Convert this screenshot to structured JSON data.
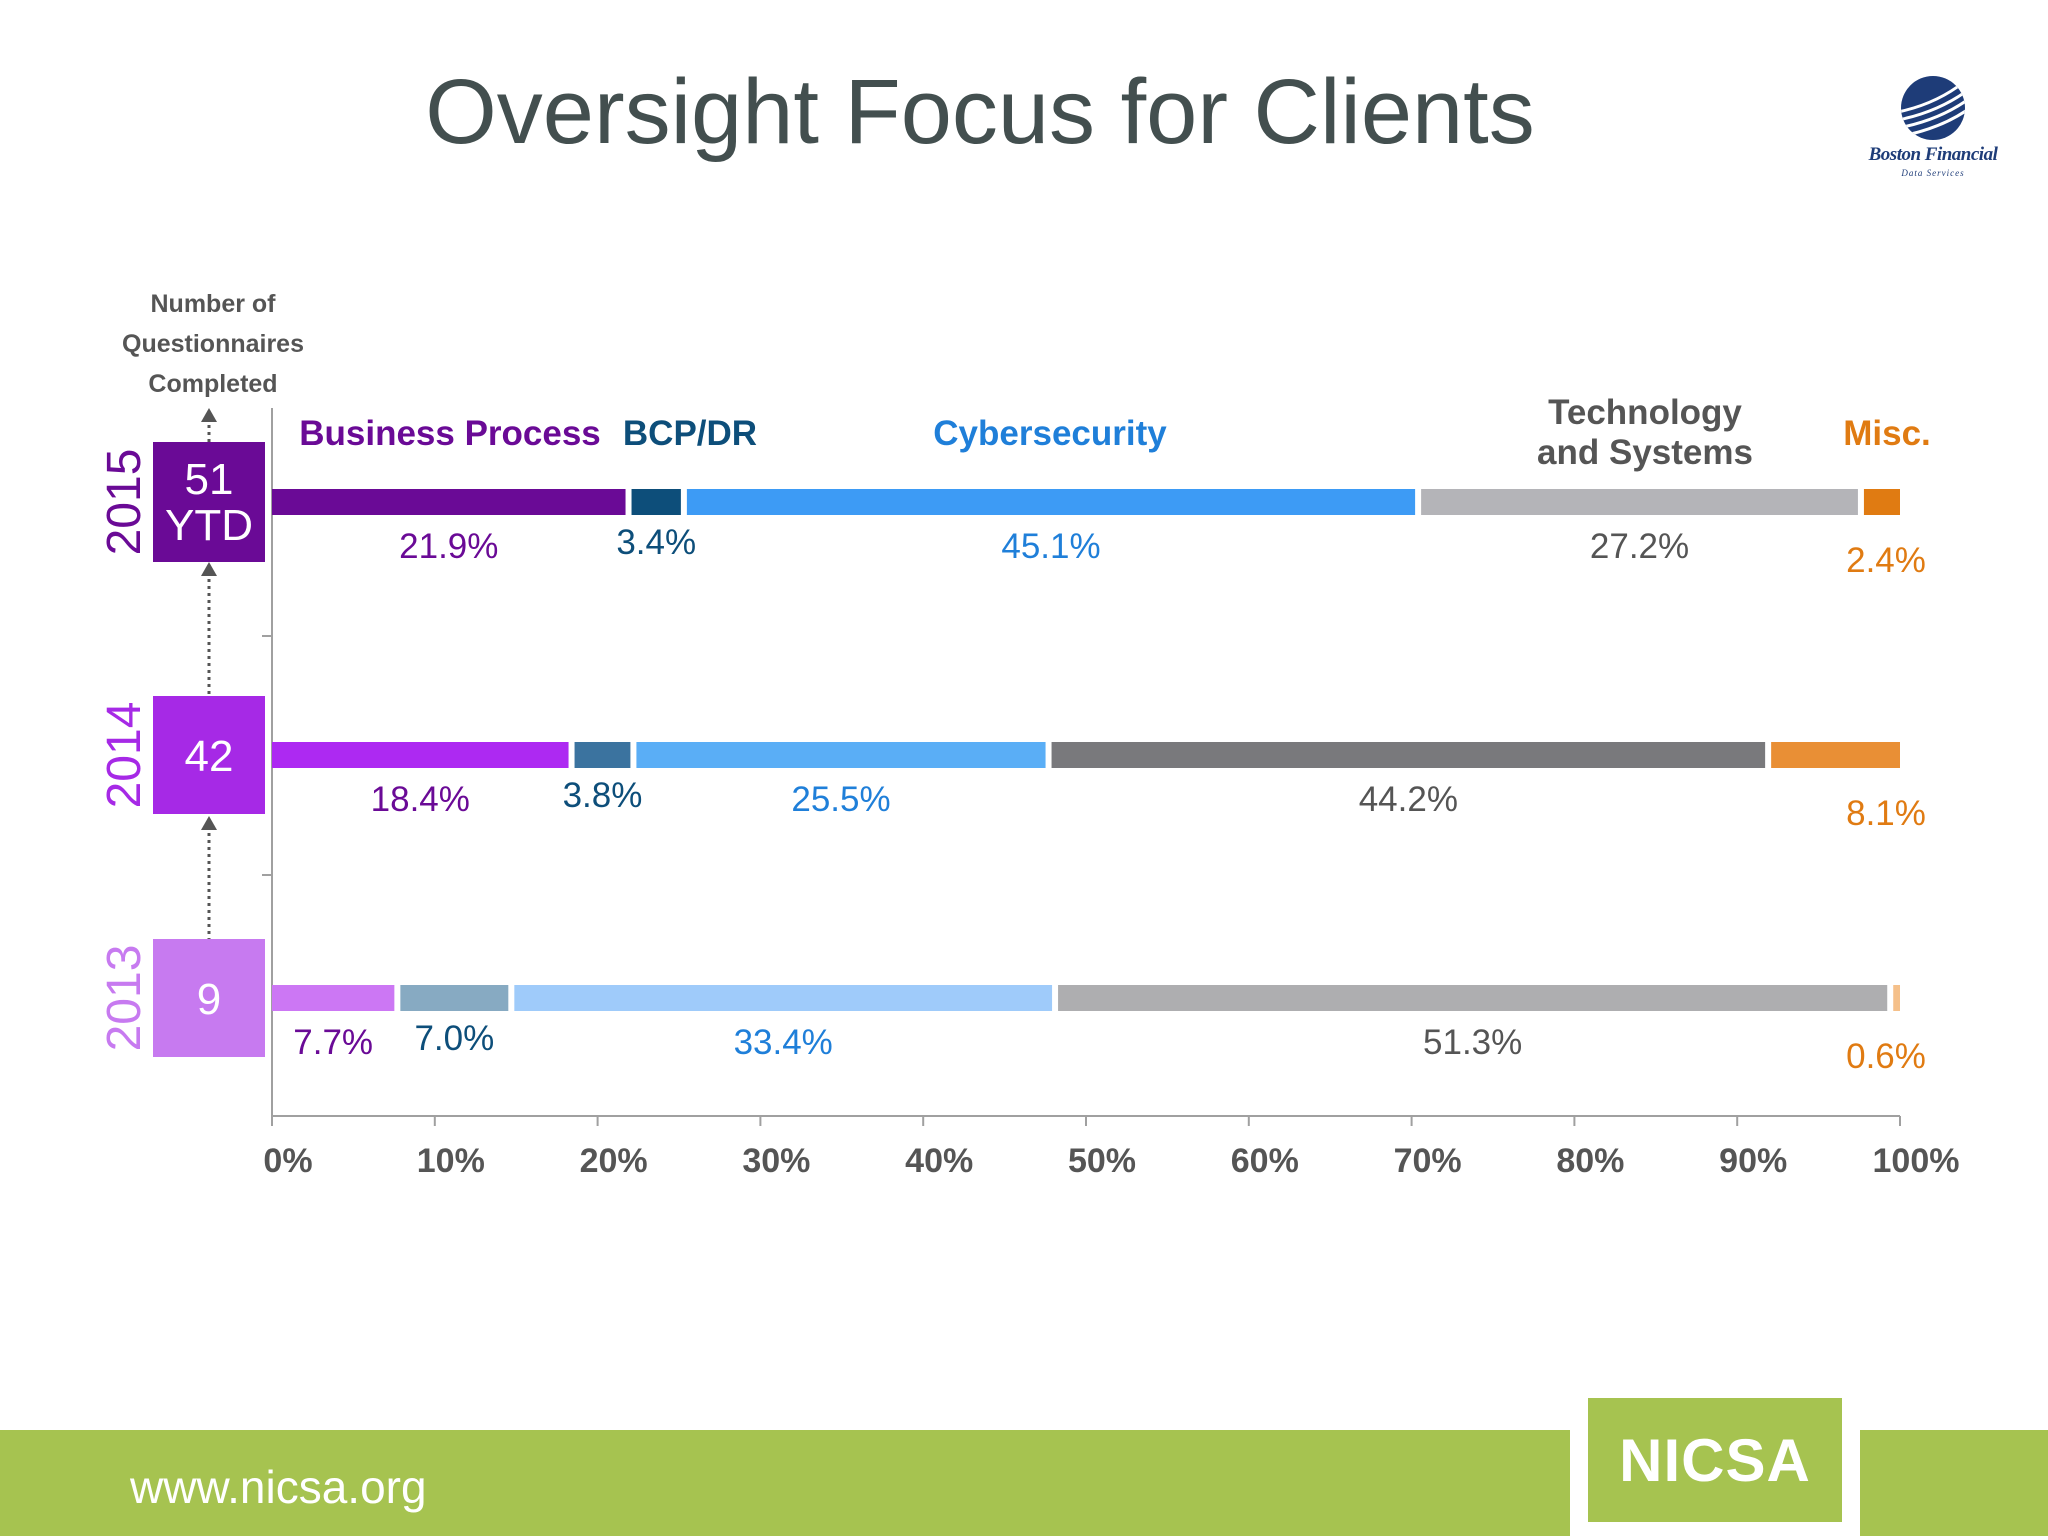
{
  "title": "Oversight Focus for Clients",
  "logo": {
    "name": "Boston Financial",
    "subtitle": "Data Services"
  },
  "footer": {
    "url": "www.nicsa.org",
    "brand": "NICSA"
  },
  "colors": {
    "footer_green": "#a6c350",
    "axis": "#9a9a9a"
  },
  "chart_data": {
    "type": "bar",
    "stacked": true,
    "orientation": "horizontal",
    "ylabel": "Number of Questionnaires Completed",
    "xlim": [
      0,
      100
    ],
    "x_ticks": [
      "0%",
      "10%",
      "20%",
      "30%",
      "40%",
      "50%",
      "60%",
      "70%",
      "80%",
      "90%",
      "100%"
    ],
    "categories_order": [
      "Business Process",
      "BCP/DR",
      "Cybersecurity",
      "Technology and Systems",
      "Misc."
    ],
    "legend": [
      {
        "name": "Business Process",
        "color": "#6a0a96"
      },
      {
        "name": "BCP/DR",
        "color": "#0d4e7a"
      },
      {
        "name": "Cybersecurity",
        "color": "#1f86e8"
      },
      {
        "name": "Technology\nand Systems",
        "color": "#636363"
      },
      {
        "name": "Misc.",
        "color": "#e07b12"
      }
    ],
    "rows": [
      {
        "year": "2015",
        "count": "51\nYTD",
        "year_color": "#6a0a96",
        "box_color": "#6a0a96",
        "values": [
          21.9,
          3.4,
          45.1,
          27.2,
          2.4
        ],
        "labels": [
          "21.9%",
          "3.4%",
          "45.1%",
          "27.2%",
          "2.4%"
        ],
        "bar_colors": [
          "#6a0a96",
          "#0d4e7a",
          "#3d9bf5",
          "#b4b4b8",
          "#e07b12"
        ]
      },
      {
        "year": "2014",
        "count": "42",
        "year_color": "#a629e6",
        "box_color": "#a629e6",
        "values": [
          18.4,
          3.8,
          25.5,
          44.2,
          8.1
        ],
        "labels": [
          "18.4%",
          "3.8%",
          "25.5%",
          "44.2%",
          "8.1%"
        ],
        "bar_colors": [
          "#ad29f2",
          "#3b739f",
          "#5aaef6",
          "#79797c",
          "#e98f35"
        ]
      },
      {
        "year": "2013",
        "count": "9",
        "year_color": "#c77af0",
        "box_color": "#c77af0",
        "values": [
          7.7,
          7.0,
          33.4,
          51.3,
          0.6
        ],
        "labels": [
          "7.7%",
          "7.0%",
          "33.4%",
          "51.3%",
          "0.6%"
        ],
        "bar_colors": [
          "#cc77f4",
          "#87aac2",
          "#9fcbfa",
          "#aeaeb0",
          "#f5c08a"
        ]
      }
    ],
    "label_colors": [
      "#6a0a96",
      "#0d4e7a",
      "#1f7fd9",
      "#555555",
      "#e07b12"
    ]
  }
}
